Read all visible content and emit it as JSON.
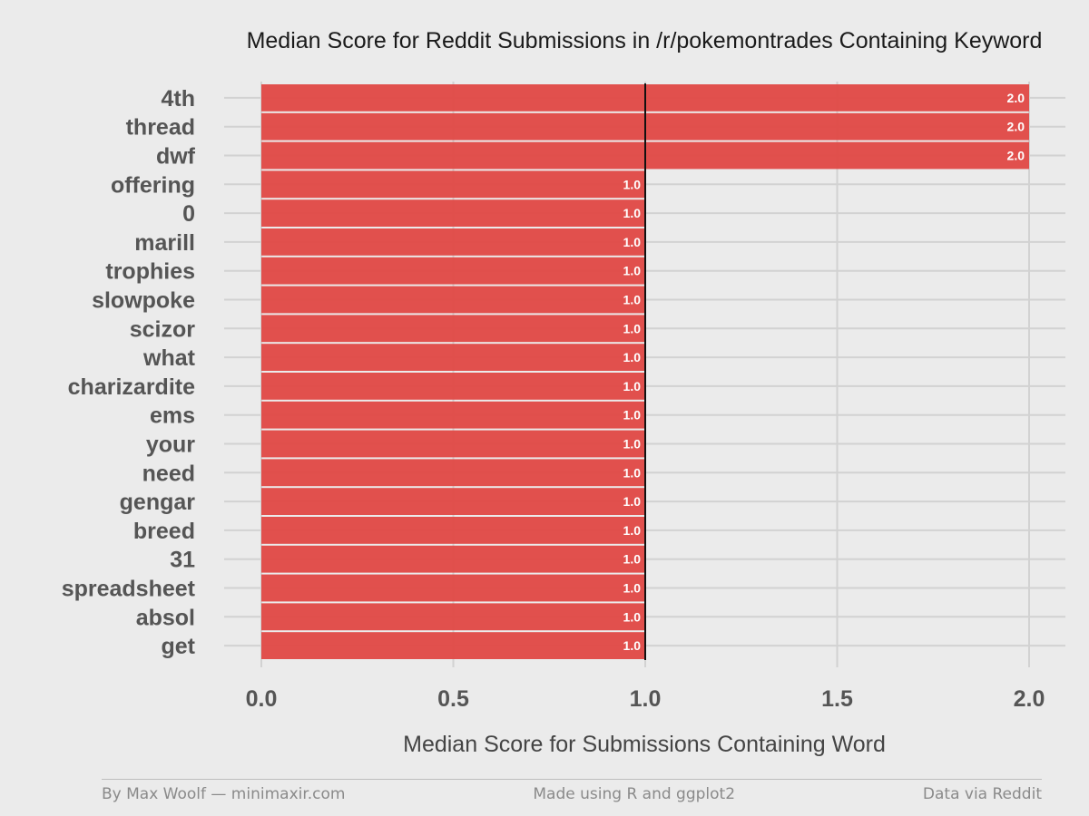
{
  "chart_data": {
    "type": "bar",
    "orientation": "horizontal",
    "title": "Median Score for Reddit Submissions in /r/pokemontrades Containing Keyword",
    "xlabel": "Median Score for Submissions Containing Word",
    "ylabel": "",
    "categories": [
      "4th",
      "thread",
      "dwf",
      "offering",
      "0",
      "marill",
      "trophies",
      "slowpoke",
      "scizor",
      "what",
      "charizardite",
      "ems",
      "your",
      "need",
      "gengar",
      "breed",
      "31",
      "spreadsheet",
      "absol",
      "get"
    ],
    "values": [
      2.0,
      2.0,
      2.0,
      1.0,
      1.0,
      1.0,
      1.0,
      1.0,
      1.0,
      1.0,
      1.0,
      1.0,
      1.0,
      1.0,
      1.0,
      1.0,
      1.0,
      1.0,
      1.0,
      1.0
    ],
    "value_labels": [
      "2.0",
      "2.0",
      "2.0",
      "1.0",
      "1.0",
      "1.0",
      "1.0",
      "1.0",
      "1.0",
      "1.0",
      "1.0",
      "1.0",
      "1.0",
      "1.0",
      "1.0",
      "1.0",
      "1.0",
      "1.0",
      "1.0",
      "1.0"
    ],
    "xlim": [
      0,
      2.0
    ],
    "xticks": [
      0,
      0.5,
      1.0,
      1.5,
      2.0
    ],
    "xtick_labels": [
      "0.0",
      "0.5",
      "1.0",
      "1.5",
      "2.0"
    ],
    "reference_line": 1.0,
    "grid": true,
    "bar_color": "#e04a47"
  },
  "footer": {
    "left": "By Max Woolf — minimaxir.com",
    "center": "Made using R and ggplot2",
    "right": "Data via Reddit"
  }
}
